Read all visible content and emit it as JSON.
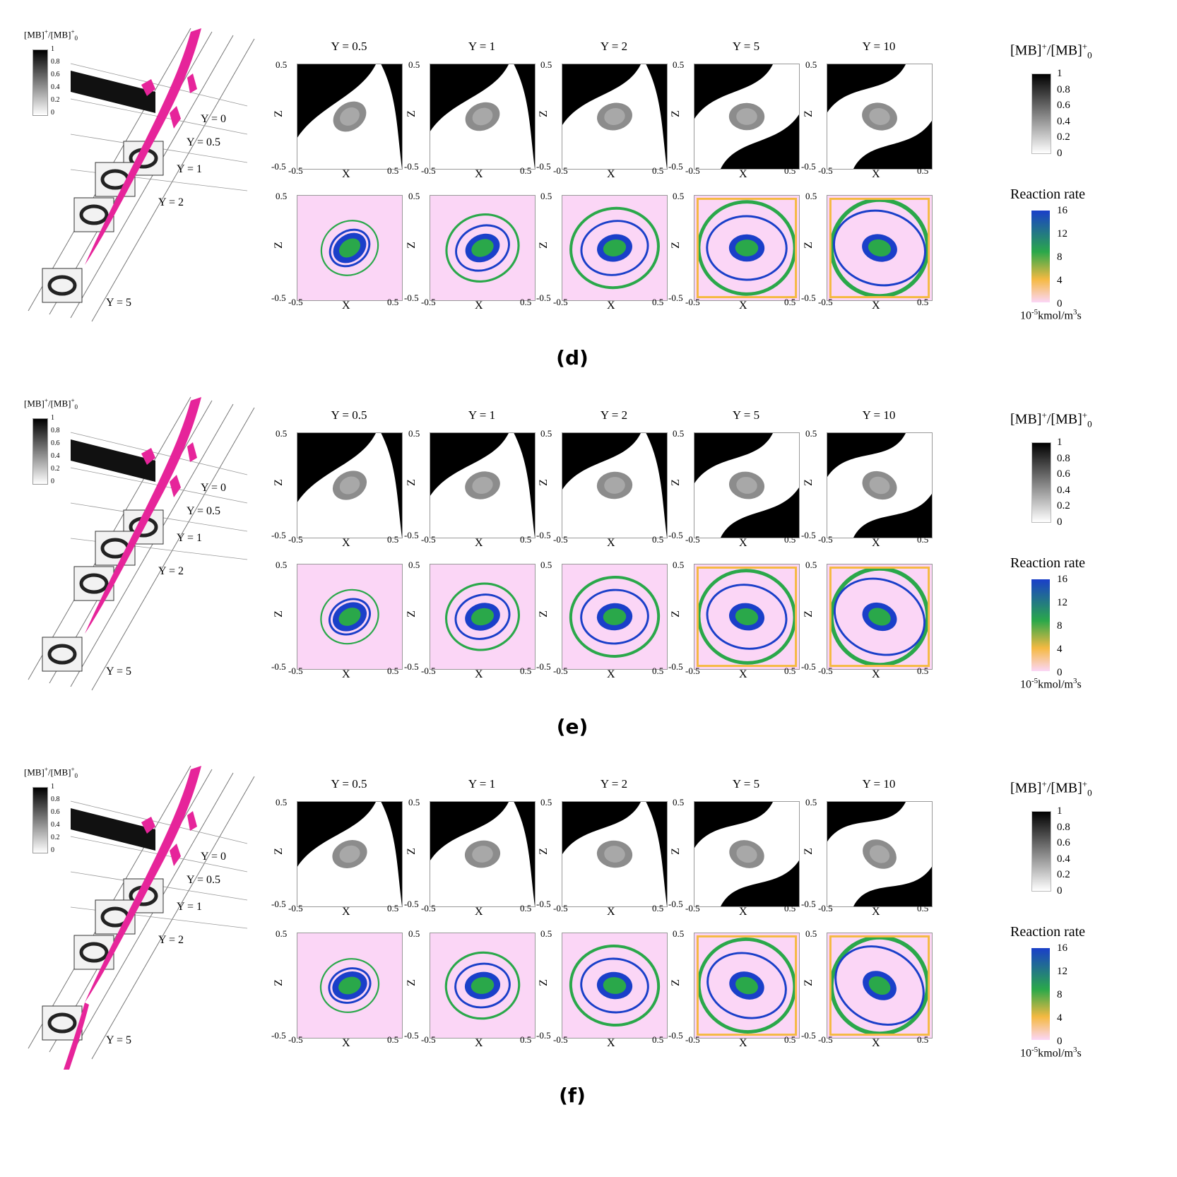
{
  "panels": [
    {
      "label": "(d)",
      "variant": 0
    },
    {
      "label": "(e)",
      "variant": 1
    },
    {
      "label": "(f)",
      "variant": 2
    }
  ],
  "columns": [
    "Y = 0.5",
    "Y = 1",
    "Y = 2",
    "Y = 5",
    "Y = 10"
  ],
  "axes": {
    "x_label": "X",
    "z_label": "Z",
    "tick_min": "-0.5",
    "tick_max": "0.5"
  },
  "concentration_legend": {
    "title_base": "[MB]",
    "title_sup": "+",
    "title_sep": "/[MB]",
    "title_sub": "0",
    "ticks": [
      "1",
      "0.8",
      "0.6",
      "0.4",
      "0.2",
      "0"
    ]
  },
  "reaction_legend": {
    "title": "Reaction rate",
    "ticks": [
      "16",
      "12",
      "8",
      "4",
      "0"
    ],
    "unit_prefix": "10",
    "unit_exp": "-5",
    "unit_suffix": "kmol/m",
    "unit_exp2": "3",
    "unit_tail": "s"
  },
  "iso_view": {
    "slice_labels": [
      "Y = 0",
      "Y = 0.5",
      "Y = 1",
      "Y = 2",
      "Y = 5"
    ],
    "legend_ticks": [
      "1",
      "0.8",
      "0.6",
      "0.4",
      "0.2",
      "0"
    ]
  },
  "colors": {
    "isosurface": "#e6249a",
    "reaction_bg": "#fbd6f6",
    "reaction_low": "#f5b942",
    "reaction_mid": "#2aa84a",
    "reaction_high": "#1a3fc9"
  }
}
